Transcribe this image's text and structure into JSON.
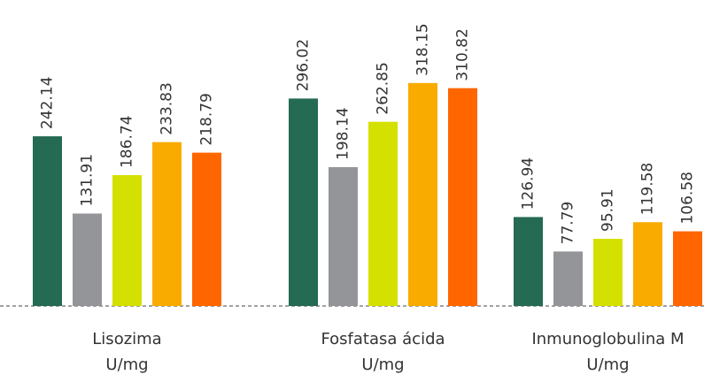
{
  "chart_data": {
    "type": "bar",
    "categories": [
      [
        "Lisozima",
        "U/mg"
      ],
      [
        "Fosfatasa ácida",
        "U/mg"
      ],
      [
        "Inmunoglobulina M",
        "U/mg"
      ]
    ],
    "series": [
      {
        "color": "#256a52",
        "values": [
          242.14,
          296.02,
          126.94
        ]
      },
      {
        "color": "#939598",
        "values": [
          131.91,
          198.14,
          77.79
        ]
      },
      {
        "color": "#d4e000",
        "values": [
          186.74,
          262.85,
          95.91
        ]
      },
      {
        "color": "#f9ab00",
        "values": [
          233.83,
          318.15,
          119.58
        ]
      },
      {
        "color": "#ff6600",
        "values": [
          218.79,
          310.82,
          106.58
        ]
      }
    ],
    "ylim": [
      0,
      400
    ]
  }
}
